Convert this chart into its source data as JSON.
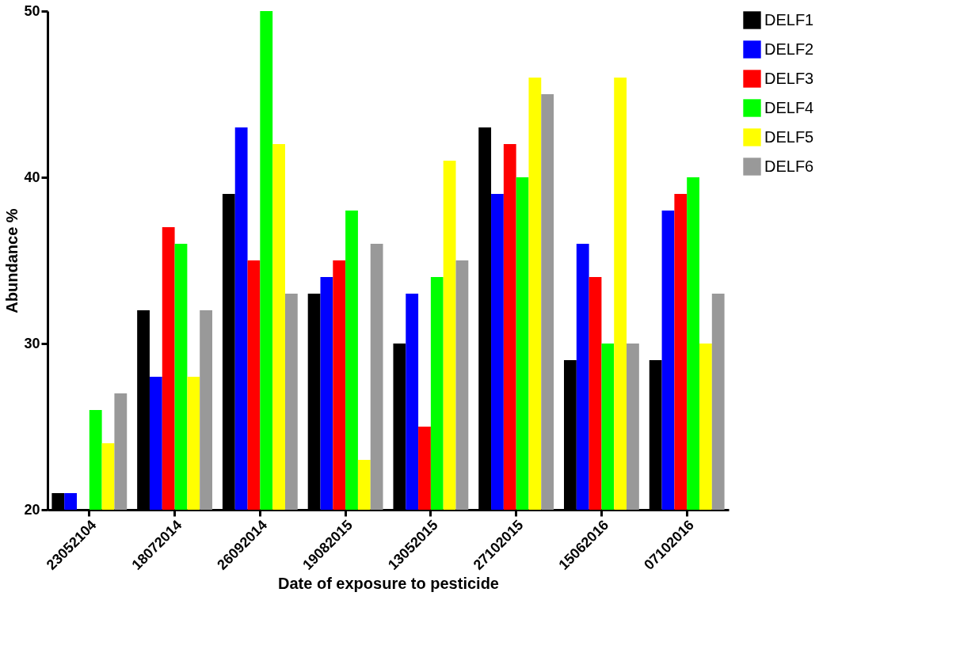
{
  "chart_data": {
    "type": "bar",
    "xlabel": "Date of exposure to pesticide",
    "ylabel": "Abundance %",
    "categories": [
      "23052104",
      "18072014",
      "26092014",
      "19082015",
      "13052015",
      "27102015",
      "15062016",
      "07102016"
    ],
    "series": [
      {
        "name": "DELF1",
        "color": "#000000",
        "values": [
          21,
          32,
          39,
          33,
          30,
          43,
          29,
          29
        ]
      },
      {
        "name": "DELF2",
        "color": "#0000ff",
        "values": [
          21,
          28,
          43,
          34,
          33,
          39,
          36,
          38
        ]
      },
      {
        "name": "DELF3",
        "color": "#ff0000",
        "values": [
          20,
          37,
          35,
          35,
          25,
          42,
          34,
          39
        ]
      },
      {
        "name": "DELF4",
        "color": "#00ff00",
        "values": [
          26,
          36,
          50,
          38,
          34,
          40,
          30,
          40
        ]
      },
      {
        "name": "DELF5",
        "color": "#ffff00",
        "values": [
          24,
          28,
          42,
          23,
          41,
          46,
          46,
          30
        ]
      },
      {
        "name": "DELF6",
        "color": "#999999",
        "values": [
          27,
          32,
          33,
          36,
          35,
          45,
          30,
          33
        ]
      }
    ],
    "ylim": [
      20,
      50
    ],
    "yticks": [
      20,
      30,
      40,
      50
    ],
    "grid": false,
    "legend": "right"
  }
}
